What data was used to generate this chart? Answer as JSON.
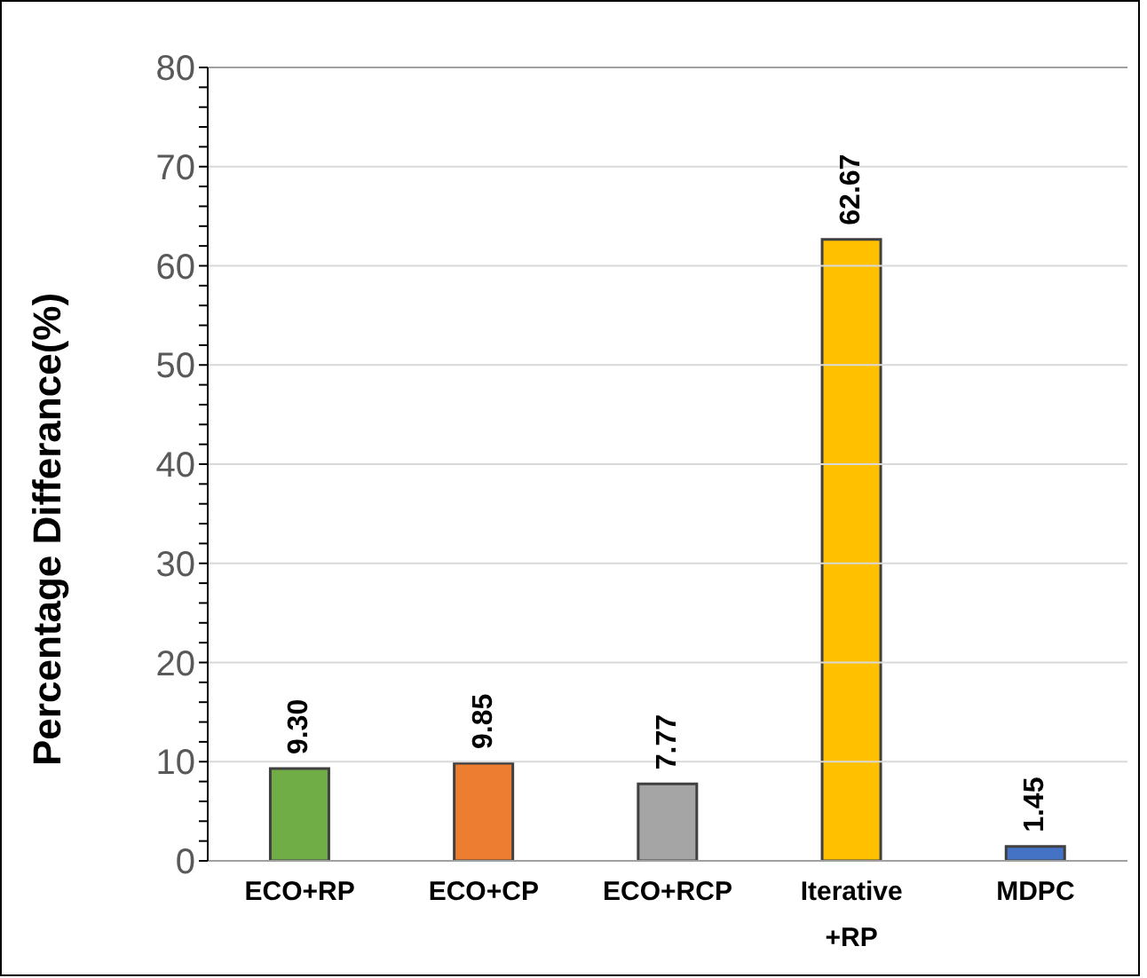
{
  "chart_data": {
    "type": "bar",
    "ylabel": "Percentage Differance(%)",
    "categories": [
      "ECO+RP",
      "ECO+CP",
      "ECO+RCP",
      "Iterative +RP",
      "MDPC"
    ],
    "values": [
      9.3,
      9.85,
      7.77,
      62.67,
      1.45
    ],
    "value_labels": [
      "9.30",
      "9.85",
      "7.77",
      "62.67",
      "1.45"
    ],
    "colors": [
      "#70ad47",
      "#ed7d31",
      "#a5a5a5",
      "#ffc000",
      "#4472c4"
    ],
    "ylim": [
      0,
      80
    ],
    "yticks": [
      0,
      {
        "value": 2,
        "label": null
      },
      {
        "value": 4,
        "label": null
      },
      {
        "value": 6,
        "label": null
      },
      {
        "value": 8,
        "label": null
      },
      10,
      {
        "value": 12,
        "label": null
      },
      {
        "value": 14,
        "label": null
      },
      {
        "value": 16,
        "label": null
      },
      {
        "value": 18,
        "label": null
      },
      20,
      {
        "value": 22,
        "label": null
      },
      {
        "value": 24,
        "label": null
      },
      {
        "value": 26,
        "label": null
      },
      {
        "value": 28,
        "label": null
      },
      30,
      {
        "value": 32,
        "label": null
      },
      {
        "value": 34,
        "label": null
      },
      {
        "value": 36,
        "label": null
      },
      {
        "value": 38,
        "label": null
      },
      40,
      {
        "value": 42,
        "label": null
      },
      {
        "value": 44,
        "label": null
      },
      {
        "value": 46,
        "label": null
      },
      {
        "value": 48,
        "label": null
      },
      50,
      {
        "value": 52,
        "label": null
      },
      {
        "value": 54,
        "label": null
      },
      {
        "value": 56,
        "label": null
      },
      {
        "value": 58,
        "label": null
      },
      60,
      {
        "value": 62,
        "label": null
      },
      {
        "value": 64,
        "label": null
      },
      {
        "value": 66,
        "label": null
      },
      {
        "value": 68,
        "label": null
      },
      70,
      {
        "value": 72,
        "label": null
      },
      {
        "value": 74,
        "label": null
      },
      {
        "value": 76,
        "label": null
      },
      {
        "value": 78,
        "label": null
      },
      80
    ],
    "grid": "y",
    "legend": false
  }
}
